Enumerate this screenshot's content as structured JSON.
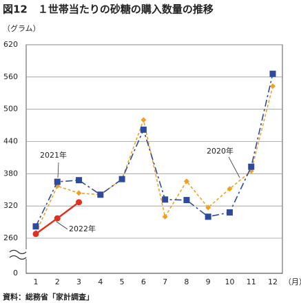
{
  "chart_data": {
    "type": "line",
    "title": "図12　１世帯当たりの砂糖の購入数量の推移",
    "y_label": "（グラム）",
    "x_label": "（月）",
    "source": "資料：総務省「家計調査」",
    "categories": [
      "1",
      "2",
      "3",
      "4",
      "5",
      "6",
      "7",
      "8",
      "9",
      "10",
      "11",
      "12"
    ],
    "series": [
      {
        "name": "2021年",
        "color": "#2e4a9a",
        "marker": "square",
        "dash": true,
        "values": [
          282,
          365,
          368,
          341,
          370,
          462,
          332,
          331,
          300,
          308,
          393,
          566
        ]
      },
      {
        "name": "2020年",
        "color": "#f0a020",
        "marker": "diamond",
        "dash": true,
        "values": [
          270,
          357,
          344,
          341,
          370,
          480,
          300,
          366,
          317,
          352,
          385,
          543
        ]
      },
      {
        "name": "2022年",
        "color": "#e03020",
        "marker": "circle",
        "dash": false,
        "values": [
          268,
          297,
          327,
          null,
          null,
          null,
          null,
          null,
          null,
          null,
          null,
          null
        ]
      }
    ],
    "ylim": [
      260,
      620
    ],
    "yticks": [
      0,
      260,
      320,
      380,
      440,
      500,
      560,
      620
    ],
    "axis_break": true,
    "grid": true
  }
}
